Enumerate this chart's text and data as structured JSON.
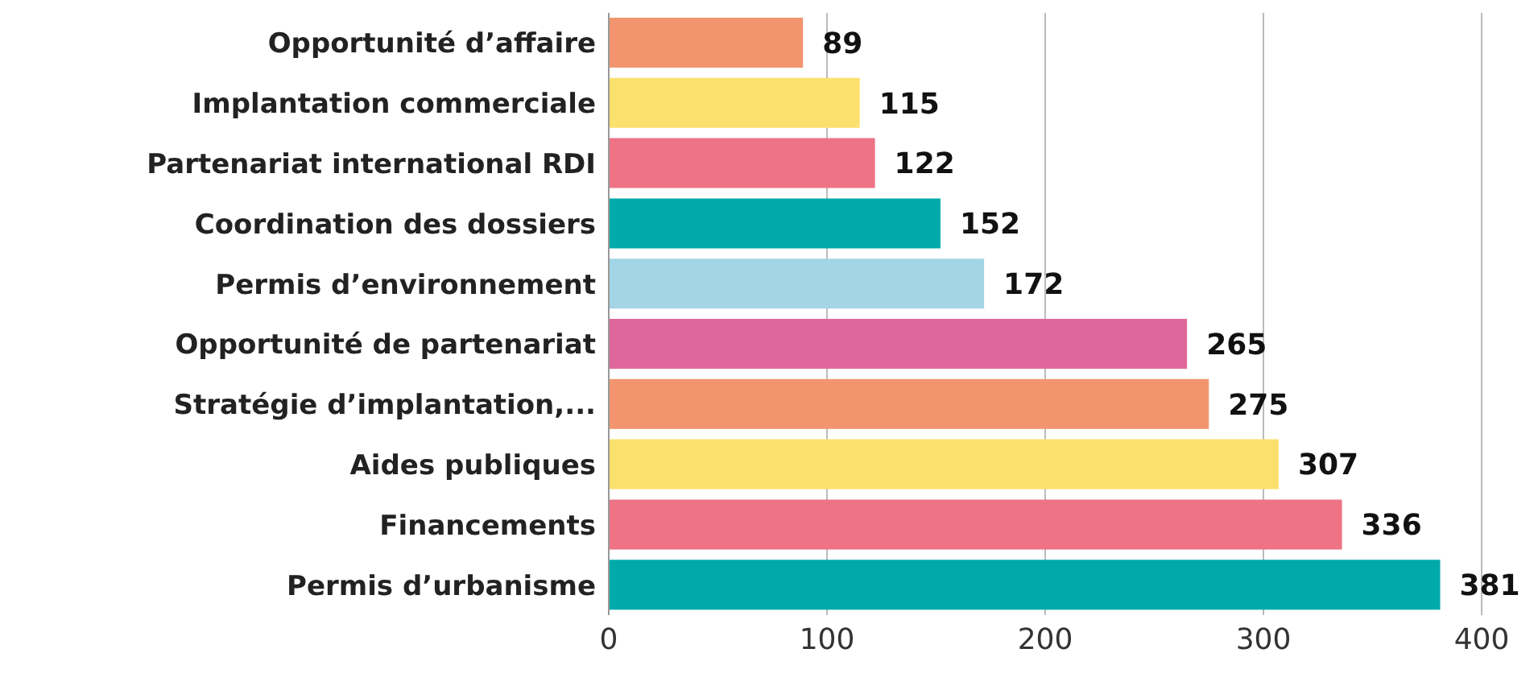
{
  "chart_data": {
    "type": "bar",
    "orientation": "horizontal",
    "categories": [
      "Opportunité d’affaire",
      "Implantation commerciale",
      "Partenariat international RDI",
      "Coordination des dossiers",
      "Permis d’environnement",
      "Opportunité de partenariat",
      "Stratégie d’implantation,...",
      "Aides publiques",
      "Financements",
      "Permis d’urbanisme"
    ],
    "values": [
      89,
      115,
      122,
      152,
      172,
      265,
      275,
      307,
      336,
      381
    ],
    "colors": [
      "#f2956e",
      "#fce06e",
      "#ee7385",
      "#00aaaa",
      "#a3d5e6",
      "#e0679b",
      "#f2956e",
      "#fce06e",
      "#ee7385",
      "#00aaaa"
    ],
    "xlim": [
      0,
      400
    ],
    "xticks": [
      0,
      100,
      200,
      300,
      400
    ],
    "grid": "x",
    "data_labels": true
  }
}
